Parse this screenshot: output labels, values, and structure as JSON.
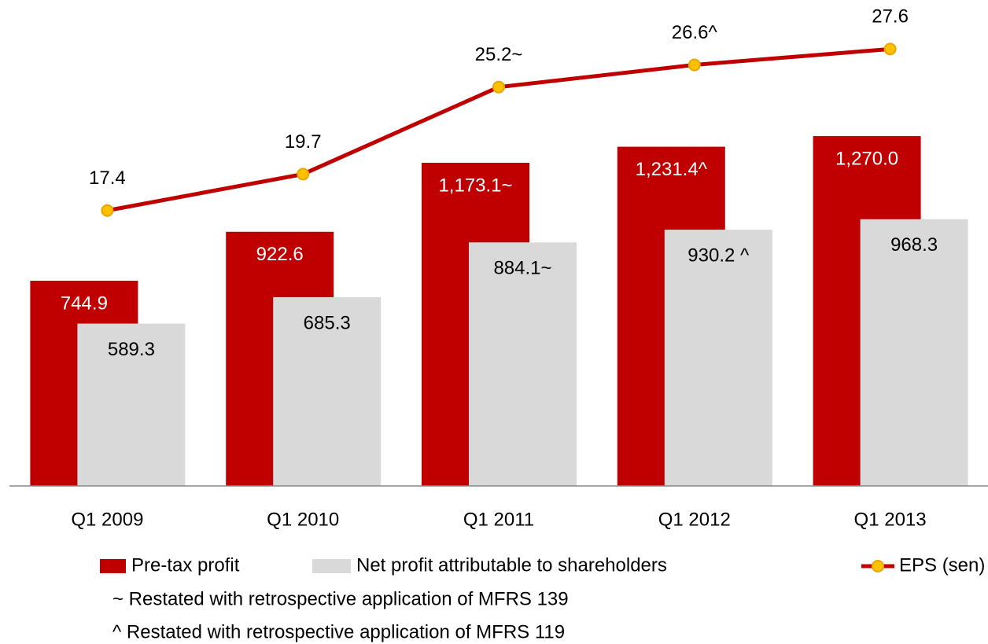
{
  "chart_data": {
    "type": "bar_line",
    "categories": [
      "Q1 2009",
      "Q1 2010",
      "Q1 2011",
      "Q1 2012",
      "Q1 2013"
    ],
    "series": [
      {
        "name": "Pre-tax profit",
        "type": "bar",
        "color": "#c00000",
        "values": [
          744.9,
          922.6,
          1173.1,
          1231.4,
          1270.0
        ],
        "value_labels": [
          "744.9",
          "922.6",
          "1,173.1~",
          "1,231.4^",
          "1,270.0"
        ]
      },
      {
        "name": "Net profit attributable to shareholders",
        "type": "bar",
        "color": "#d9d9d9",
        "values": [
          589.3,
          685.3,
          884.1,
          930.2,
          968.3
        ],
        "value_labels": [
          "589.3",
          "685.3",
          "884.1~",
          "930.2 ^",
          "968.3"
        ]
      },
      {
        "name": "EPS (sen)",
        "type": "line",
        "axis": "y2",
        "color": "#c00000",
        "marker_color": "#ffc000",
        "values": [
          17.4,
          19.7,
          25.2,
          26.6,
          27.6
        ],
        "value_labels": [
          "17.4",
          "19.7",
          "25.2~",
          "26.6^",
          "27.6"
        ]
      }
    ],
    "ylim": [
      0,
      1764
    ],
    "y2lim": [
      0,
      30.7
    ],
    "legend": "bottom",
    "notes": [
      "~ Restated with retrospective application of MFRS 139",
      "^ Restated with retrospective application of MFRS 119"
    ]
  }
}
